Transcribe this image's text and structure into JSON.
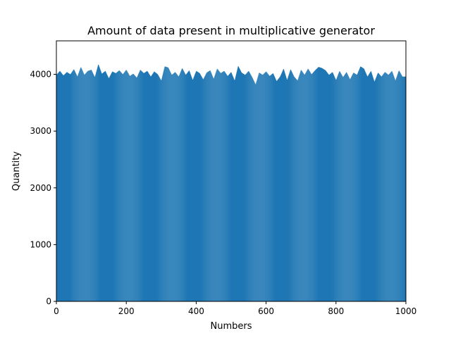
{
  "chart_data": {
    "type": "bar",
    "title": "Amount of data present in multiplicative generator",
    "xlabel": "Numbers",
    "ylabel": "Quantity",
    "xlim": [
      0,
      1000
    ],
    "ylim": [
      0,
      4590
    ],
    "xticks": [
      "0",
      "200",
      "400",
      "600",
      "800",
      "1000"
    ],
    "yticks": [
      "0",
      "1000",
      "2000",
      "3000",
      "4000"
    ],
    "bin_count": 1000,
    "bin_width": 1,
    "baseline_value": 3950,
    "min_value": 3820,
    "max_value": 4180,
    "series": [
      {
        "bins": [
          {
            "x": 0,
            "y": 3990
          },
          {
            "x": 10,
            "y": 4060
          },
          {
            "x": 20,
            "y": 3980
          },
          {
            "x": 30,
            "y": 4040
          },
          {
            "x": 40,
            "y": 4000
          },
          {
            "x": 50,
            "y": 4090
          },
          {
            "x": 60,
            "y": 3960
          },
          {
            "x": 70,
            "y": 4130
          },
          {
            "x": 80,
            "y": 3990
          },
          {
            "x": 90,
            "y": 4060
          },
          {
            "x": 100,
            "y": 4080
          },
          {
            "x": 110,
            "y": 3950
          },
          {
            "x": 120,
            "y": 4180
          },
          {
            "x": 130,
            "y": 4010
          },
          {
            "x": 140,
            "y": 4060
          },
          {
            "x": 150,
            "y": 3930
          },
          {
            "x": 160,
            "y": 4050
          },
          {
            "x": 170,
            "y": 4020
          },
          {
            "x": 180,
            "y": 4070
          },
          {
            "x": 190,
            "y": 4000
          },
          {
            "x": 200,
            "y": 4080
          },
          {
            "x": 210,
            "y": 3970
          },
          {
            "x": 220,
            "y": 4010
          },
          {
            "x": 230,
            "y": 3940
          },
          {
            "x": 240,
            "y": 4080
          },
          {
            "x": 250,
            "y": 4020
          },
          {
            "x": 260,
            "y": 4060
          },
          {
            "x": 270,
            "y": 3960
          },
          {
            "x": 280,
            "y": 4050
          },
          {
            "x": 290,
            "y": 4000
          },
          {
            "x": 300,
            "y": 3890
          },
          {
            "x": 310,
            "y": 4140
          },
          {
            "x": 320,
            "y": 4120
          },
          {
            "x": 330,
            "y": 3990
          },
          {
            "x": 340,
            "y": 4040
          },
          {
            "x": 350,
            "y": 3960
          },
          {
            "x": 360,
            "y": 4110
          },
          {
            "x": 370,
            "y": 3990
          },
          {
            "x": 380,
            "y": 4070
          },
          {
            "x": 390,
            "y": 3900
          },
          {
            "x": 400,
            "y": 4060
          },
          {
            "x": 410,
            "y": 4020
          },
          {
            "x": 420,
            "y": 3910
          },
          {
            "x": 430,
            "y": 4030
          },
          {
            "x": 440,
            "y": 4070
          },
          {
            "x": 450,
            "y": 3920
          },
          {
            "x": 460,
            "y": 4100
          },
          {
            "x": 470,
            "y": 4020
          },
          {
            "x": 480,
            "y": 4060
          },
          {
            "x": 490,
            "y": 3970
          },
          {
            "x": 500,
            "y": 4040
          },
          {
            "x": 510,
            "y": 3890
          },
          {
            "x": 520,
            "y": 4150
          },
          {
            "x": 530,
            "y": 4030
          },
          {
            "x": 540,
            "y": 3990
          },
          {
            "x": 550,
            "y": 4060
          },
          {
            "x": 560,
            "y": 3950
          },
          {
            "x": 570,
            "y": 3820
          },
          {
            "x": 580,
            "y": 4030
          },
          {
            "x": 590,
            "y": 3990
          },
          {
            "x": 600,
            "y": 4050
          },
          {
            "x": 610,
            "y": 3970
          },
          {
            "x": 620,
            "y": 4020
          },
          {
            "x": 630,
            "y": 3880
          },
          {
            "x": 640,
            "y": 3960
          },
          {
            "x": 650,
            "y": 4100
          },
          {
            "x": 660,
            "y": 3900
          },
          {
            "x": 670,
            "y": 4090
          },
          {
            "x": 680,
            "y": 3960
          },
          {
            "x": 690,
            "y": 3890
          },
          {
            "x": 700,
            "y": 4080
          },
          {
            "x": 710,
            "y": 3990
          },
          {
            "x": 720,
            "y": 4100
          },
          {
            "x": 730,
            "y": 4000
          },
          {
            "x": 740,
            "y": 4070
          },
          {
            "x": 750,
            "y": 4130
          },
          {
            "x": 760,
            "y": 4110
          },
          {
            "x": 770,
            "y": 4070
          },
          {
            "x": 780,
            "y": 3990
          },
          {
            "x": 790,
            "y": 4040
          },
          {
            "x": 800,
            "y": 3900
          },
          {
            "x": 810,
            "y": 4060
          },
          {
            "x": 820,
            "y": 3950
          },
          {
            "x": 830,
            "y": 4040
          },
          {
            "x": 840,
            "y": 3910
          },
          {
            "x": 850,
            "y": 4030
          },
          {
            "x": 860,
            "y": 3990
          },
          {
            "x": 870,
            "y": 4140
          },
          {
            "x": 880,
            "y": 4100
          },
          {
            "x": 890,
            "y": 3960
          },
          {
            "x": 900,
            "y": 4060
          },
          {
            "x": 910,
            "y": 3870
          },
          {
            "x": 920,
            "y": 4030
          },
          {
            "x": 930,
            "y": 3960
          },
          {
            "x": 940,
            "y": 4040
          },
          {
            "x": 950,
            "y": 3990
          },
          {
            "x": 960,
            "y": 4060
          },
          {
            "x": 970,
            "y": 3890
          },
          {
            "x": 980,
            "y": 4070
          },
          {
            "x": 990,
            "y": 3960
          }
        ]
      }
    ],
    "bar_color": "#1f77b4",
    "grid": false,
    "legend": "none"
  }
}
